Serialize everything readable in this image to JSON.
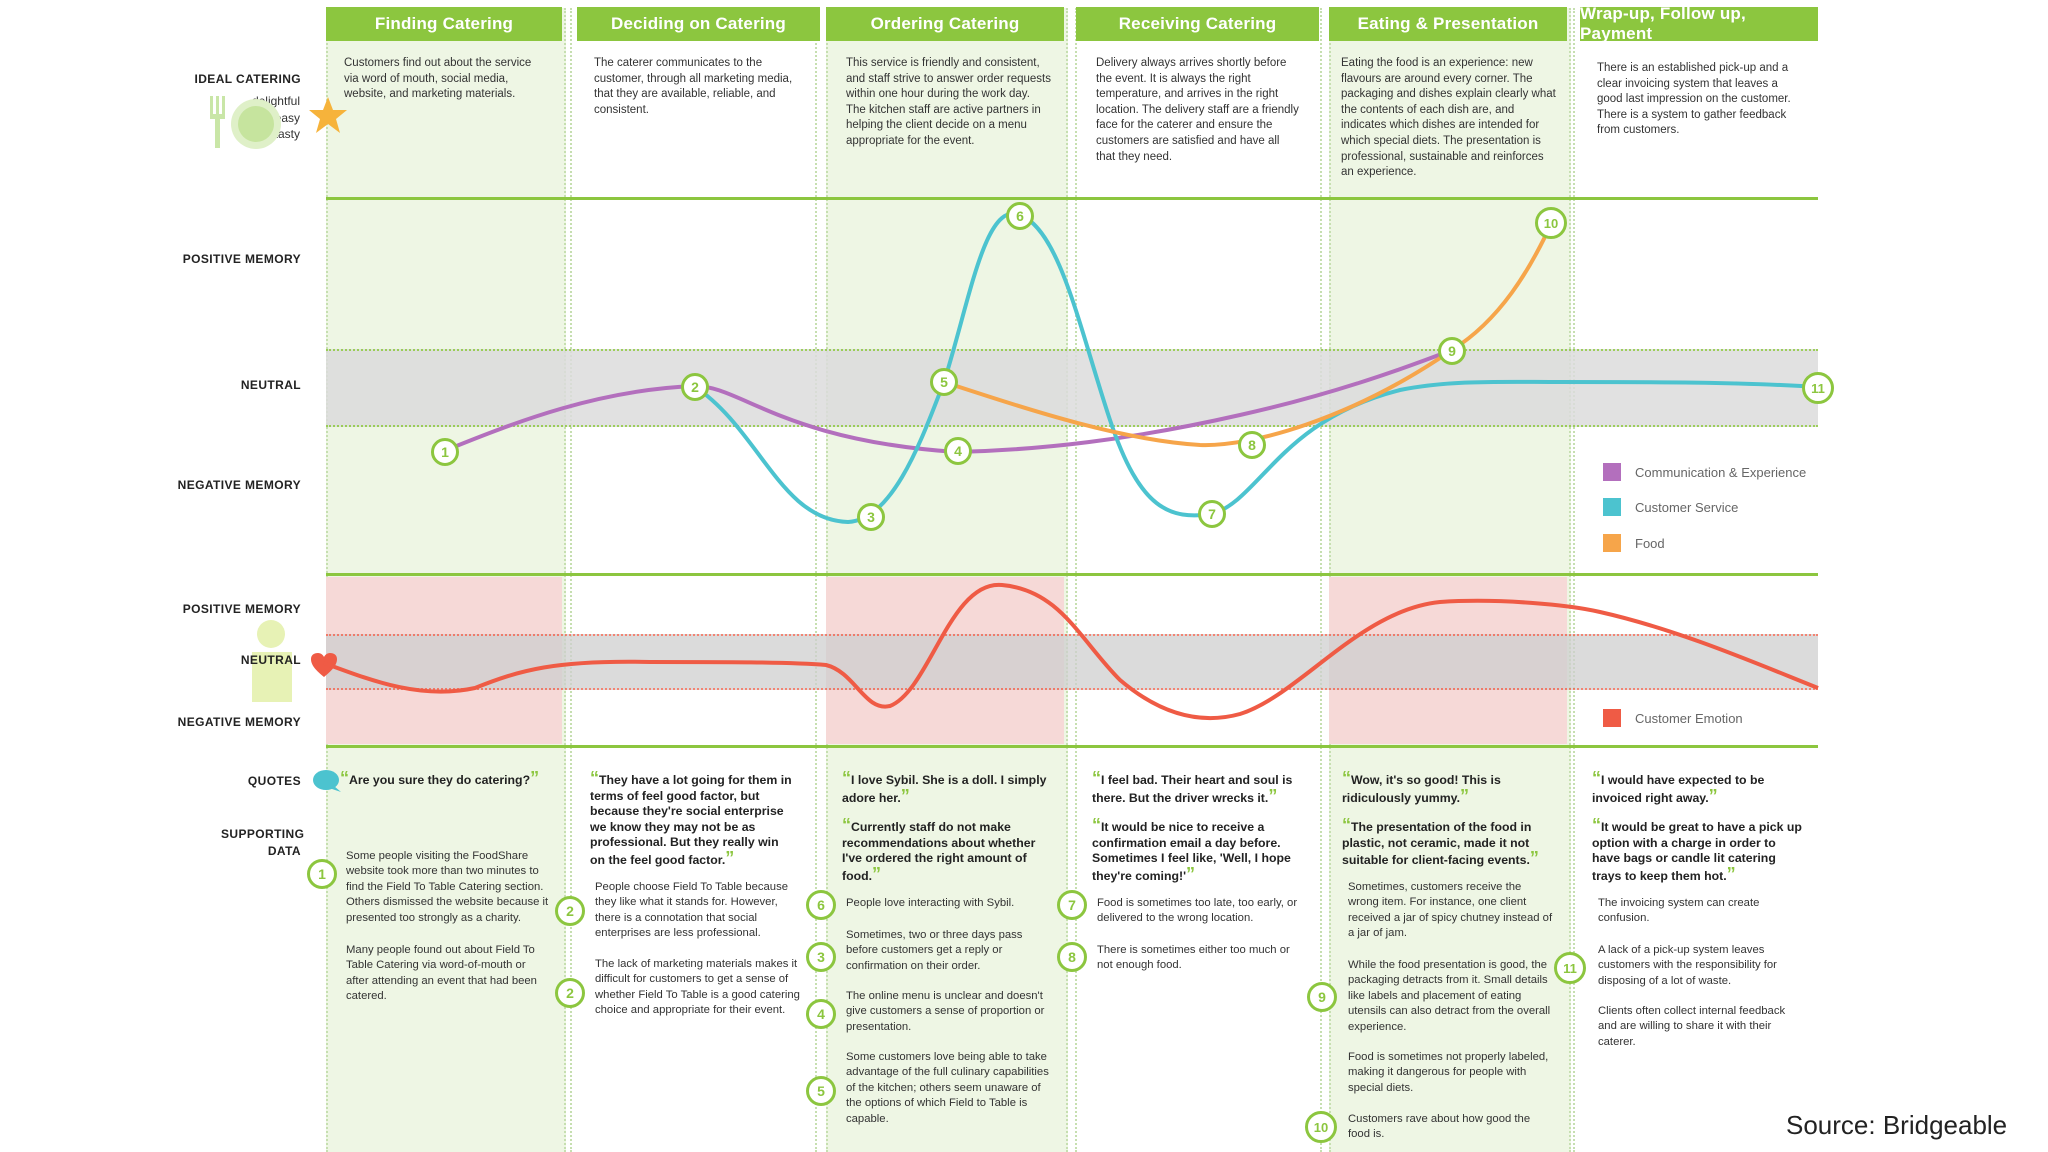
{
  "columns": [
    {
      "title": "Finding Catering",
      "ideal": "Customers find out about the service via word of mouth, social media, website, and marketing materials.",
      "quotes": [
        "Are you sure they do catering?"
      ],
      "support": [
        {
          "num": "1",
          "text": "Some people visiting the FoodShare website took more than two minutes to find the Field To Table Catering section. Others dismissed the website because it presented too strongly as a charity."
        },
        {
          "num": "",
          "text": "Many people found out about Field To Table Catering via word-of-mouth or after attending an event that had been catered."
        }
      ]
    },
    {
      "title": "Deciding on Catering",
      "ideal": "The caterer communicates to the customer, through all marketing media, that they are available, reliable, and consistent.",
      "quotes": [
        "They have a lot going for them in terms of feel good factor, but because they're social enterprise we know they may not be as professional. But they really win on the feel good factor."
      ],
      "support": [
        {
          "num": "2",
          "text": "People choose Field To Table because they like what it stands for. However, there is a connotation that social enterprises are less professional."
        },
        {
          "num": "2",
          "text": "The lack of marketing materials makes it difficult for customers to get a sense of whether Field To Table is a good catering choice and appropriate for their event."
        }
      ]
    },
    {
      "title": "Ordering Catering",
      "ideal": "This service is friendly and consistent, and staff strive to answer order requests within one hour during the work day. The kitchen staff are active partners in helping the client decide on a menu appropriate for the event.",
      "quotes": [
        "I love Sybil. She is a doll. I simply adore her.",
        "Currently staff do not make recommendations about whether I've ordered the right amount of food."
      ],
      "support": [
        {
          "num": "6",
          "text": "People love interacting with Sybil."
        },
        {
          "num": "3",
          "text": "Sometimes, two or three days pass before customers get a reply or confirmation on their order."
        },
        {
          "num": "4",
          "text": "The online menu is unclear and doesn't give customers a sense of proportion or presentation."
        },
        {
          "num": "5",
          "text": "Some customers love being able to take advantage of the full culinary capabilities of the kitchen; others seem unaware of the options of which Field to Table is capable."
        }
      ]
    },
    {
      "title": "Receiving Catering",
      "ideal": "Delivery always arrives shortly before the event. It is always the right temperature, and arrives in the right location. The delivery staff are a friendly face for the caterer and ensure the customers are satisfied and have all that they need.",
      "quotes": [
        "I feel bad. Their heart and soul is there. But the driver wrecks it.",
        "It would be nice to receive a confirmation email a day before. Sometimes I feel like, 'Well, I hope they're coming!'"
      ],
      "support": [
        {
          "num": "7",
          "text": "Food is sometimes too late, too early, or delivered to the wrong location."
        },
        {
          "num": "8",
          "text": "There is sometimes either too much or not enough food."
        }
      ]
    },
    {
      "title": "Eating & Presentation",
      "ideal": "Eating the food is an experience: new flavours are around every corner. The packaging and dishes explain clearly what the contents of each dish are, and indicates which dishes are intended for which special diets. The presentation is professional, sustainable and reinforces an experience.",
      "quotes": [
        "Wow, it's so good! This is ridiculously yummy.",
        "The presentation of the food in plastic, not ceramic, made it not suitable for client-facing events."
      ],
      "support": [
        {
          "num": "",
          "text": "Sometimes, customers receive the wrong item. For instance, one client received a jar of spicy chutney instead of a jar of jam."
        },
        {
          "num": "9",
          "text": "While the food presentation is good, the packaging detracts from it. Small details like labels and placement of eating utensils can also detract from the overall experience."
        },
        {
          "num": "",
          "text": "Food is sometimes not properly labeled, making it dangerous for people with special diets."
        },
        {
          "num": "10",
          "text": "Customers rave about how good the food is."
        }
      ]
    },
    {
      "title": "Wrap-up, Follow up, Payment",
      "ideal": "There is an established pick-up and a clear invoicing system that leaves a good last impression on the customer. There is a system to gather feedback from customers.",
      "quotes": [
        "I would have expected to be invoiced right away.",
        "It would be great to have a pick up option with a charge in order to have bags or candle lit catering trays to keep them hot."
      ],
      "support": [
        {
          "num": "",
          "text": "The invoicing system can create confusion."
        },
        {
          "num": "11",
          "text": "A lack of a pick-up system leaves customers with the responsibility for disposing of a lot of waste."
        },
        {
          "num": "",
          "text": "Clients often collect internal feedback and are willing to share it with their caterer."
        }
      ]
    }
  ],
  "row_labels": {
    "ideal": "IDEAL CATERING",
    "ideal_words": [
      "delightful",
      "easy",
      "tasty"
    ],
    "positive": "POSITIVE MEMORY",
    "neutral": "NEUTRAL",
    "negative": "NEGATIVE MEMORY",
    "positive2": "POSITIVE MEMORY",
    "neutral2": "NEUTRAL",
    "negative2": "NEGATIVE MEMORY",
    "quotes": "QUOTES",
    "supporting": "SUPPORTING DATA"
  },
  "legend": [
    {
      "label": "Communication & Experience",
      "color": "#b36fbd"
    },
    {
      "label": "Customer Service",
      "color": "#4cc3cf"
    },
    {
      "label": "Food",
      "color": "#f6a54a"
    }
  ],
  "legend2": [
    {
      "label": "Customer Emotion",
      "color": "#ef5b45"
    }
  ],
  "touchpoints": [
    {
      "num": "1",
      "series": "Communication & Experience"
    },
    {
      "num": "2",
      "series": "Communication & Experience"
    },
    {
      "num": "3",
      "series": "Customer Service"
    },
    {
      "num": "4",
      "series": "Communication & Experience"
    },
    {
      "num": "5",
      "series": "Customer Service"
    },
    {
      "num": "6",
      "series": "Customer Service"
    },
    {
      "num": "7",
      "series": "Customer Service"
    },
    {
      "num": "8",
      "series": "Food"
    },
    {
      "num": "9",
      "series": "Communication & Experience"
    },
    {
      "num": "10",
      "series": "Food"
    },
    {
      "num": "11",
      "series": "Customer Service"
    }
  ],
  "colors": {
    "accent": "#8cc63f",
    "neutral_band": "#dcdcdc",
    "negative_band": "#f6d9d7",
    "column_tint": "#eef6e4"
  },
  "source": "Source: Bridgeable"
}
